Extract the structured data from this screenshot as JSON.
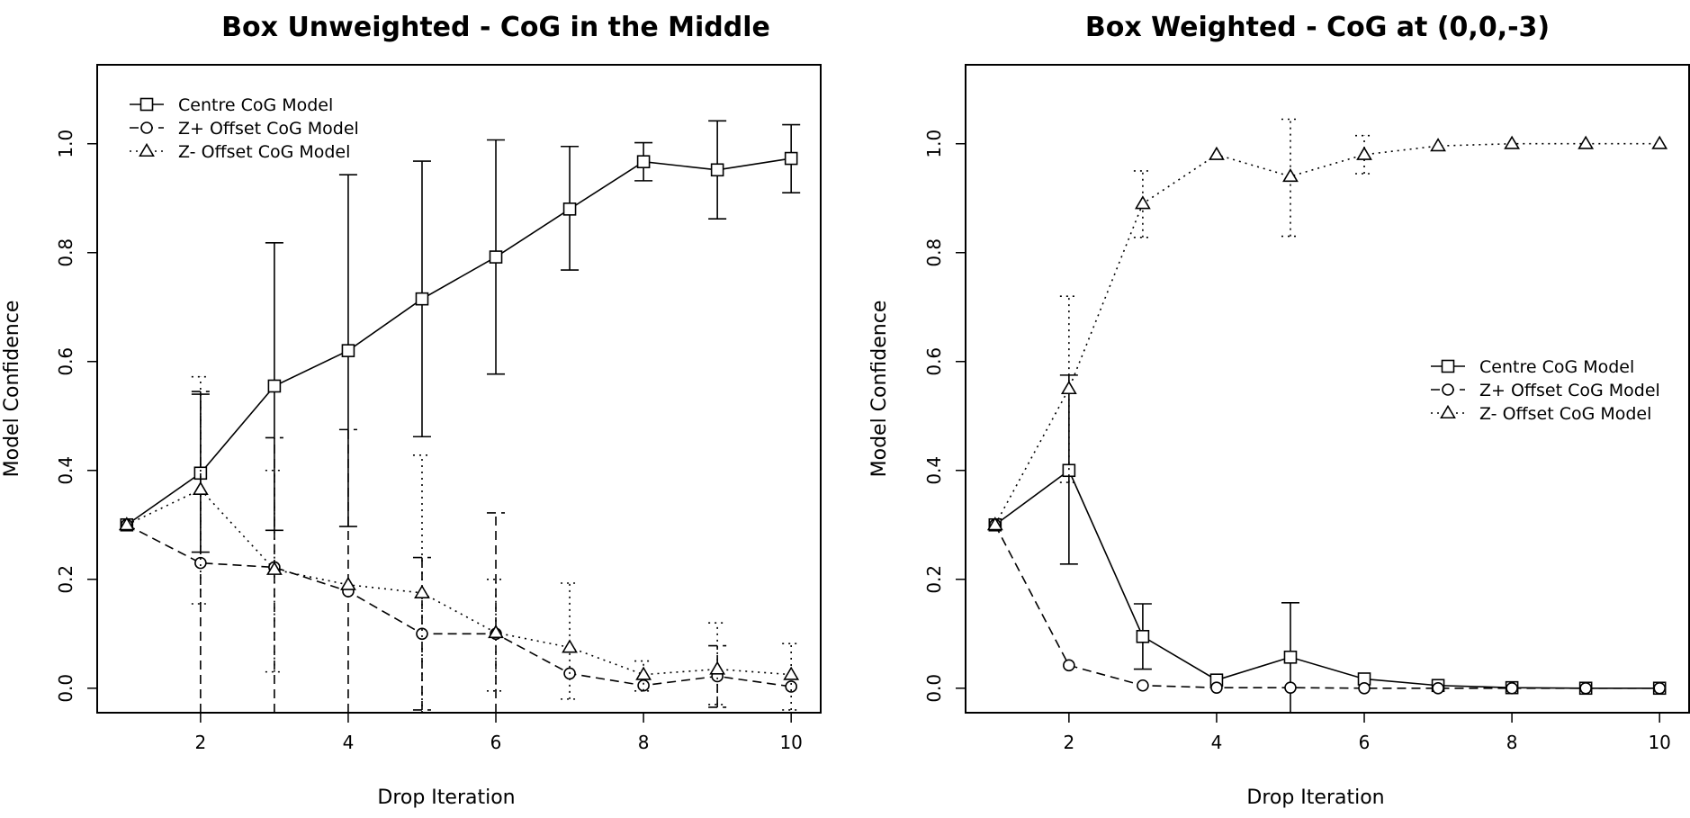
{
  "chart_data": [
    {
      "type": "line",
      "title": "Box Unweighted - CoG in the Middle",
      "xlabel": "Drop Iteration",
      "ylabel": "Model Confidence",
      "xlim": [
        0.6,
        10.4
      ],
      "ylim": [
        -0.045,
        1.145
      ],
      "xticks": [
        "2",
        "4",
        "6",
        "8",
        "10"
      ],
      "yticks": [
        "0.0",
        "0.2",
        "0.4",
        "0.6",
        "0.8",
        "1.0"
      ],
      "grid": false,
      "legend_position": "top-left",
      "x": [
        1,
        2,
        3,
        4,
        5,
        6,
        7,
        8,
        9,
        10
      ],
      "series": [
        {
          "name": "Centre CoG Model",
          "marker": "square",
          "line": "solid",
          "values": [
            0.3,
            0.395,
            0.555,
            0.62,
            0.715,
            0.792,
            0.88,
            0.967,
            0.952,
            0.973
          ],
          "error_low": [
            null,
            0.25,
            0.29,
            0.297,
            0.462,
            0.577,
            0.768,
            0.932,
            0.862,
            0.91
          ],
          "error_high": [
            null,
            0.54,
            0.818,
            0.943,
            0.968,
            1.007,
            0.995,
            1.002,
            1.042,
            1.035
          ]
        },
        {
          "name": "Z+ Offset CoG Model",
          "marker": "circle",
          "line": "dashed",
          "values": [
            0.3,
            0.23,
            0.222,
            0.178,
            0.1,
            0.1,
            0.027,
            0.005,
            0.022,
            0.003
          ],
          "error_low": [
            null,
            -0.045,
            -0.045,
            -0.045,
            -0.04,
            -0.045,
            null,
            null,
            -0.035,
            null
          ],
          "error_high": [
            null,
            0.545,
            0.46,
            0.475,
            0.24,
            0.322,
            null,
            null,
            0.078,
            null
          ]
        },
        {
          "name": "Z-  Offset CoG Model",
          "marker": "triangle",
          "line": "dotted",
          "values": [
            0.3,
            0.365,
            0.218,
            0.19,
            0.175,
            0.102,
            0.075,
            0.025,
            0.035,
            0.025
          ],
          "error_low": [
            null,
            0.155,
            0.03,
            null,
            -0.045,
            -0.005,
            -0.02,
            -0.005,
            -0.03,
            -0.04
          ],
          "error_high": [
            null,
            0.572,
            0.4,
            0.48,
            0.428,
            0.2,
            0.193,
            0.05,
            0.12,
            0.082
          ]
        }
      ]
    },
    {
      "type": "line",
      "title": "Box Weighted - CoG at (0,0,-3)",
      "xlabel": "Drop Iteration",
      "ylabel": "Model Confidence",
      "xlim": [
        0.6,
        10.4
      ],
      "ylim": [
        -0.045,
        1.145
      ],
      "xticks": [
        "2",
        "4",
        "6",
        "8",
        "10"
      ],
      "yticks": [
        "0.0",
        "0.2",
        "0.4",
        "0.6",
        "0.8",
        "1.0"
      ],
      "grid": false,
      "legend_position": "right-middle",
      "x": [
        1,
        2,
        3,
        4,
        5,
        6,
        7,
        8,
        9,
        10
      ],
      "series": [
        {
          "name": "Centre CoG Model",
          "marker": "square",
          "line": "solid",
          "values": [
            0.3,
            0.4,
            0.095,
            0.015,
            0.057,
            0.017,
            0.005,
            0.001,
            0.0,
            0.0
          ],
          "error_low": [
            null,
            0.228,
            0.035,
            null,
            -0.045,
            null,
            null,
            null,
            null,
            null
          ],
          "error_high": [
            null,
            0.575,
            0.155,
            null,
            0.157,
            null,
            null,
            null,
            null,
            null
          ]
        },
        {
          "name": "Z+ Offset CoG Model",
          "marker": "circle",
          "line": "dashed",
          "values": [
            0.3,
            0.042,
            0.005,
            0.001,
            0.001,
            0.0,
            0.0,
            0.0,
            0.0,
            0.0
          ],
          "error_low": [
            null,
            null,
            null,
            null,
            null,
            null,
            null,
            null,
            null,
            null
          ],
          "error_high": [
            null,
            null,
            null,
            null,
            null,
            null,
            null,
            null,
            null,
            null
          ]
        },
        {
          "name": "Z-  Offset CoG Model",
          "marker": "triangle",
          "line": "dotted",
          "values": [
            0.3,
            0.55,
            0.89,
            0.98,
            0.94,
            0.98,
            0.996,
            1.0,
            1.0,
            1.0
          ],
          "error_low": [
            null,
            0.378,
            0.828,
            null,
            0.83,
            0.945,
            null,
            null,
            null,
            null
          ],
          "error_high": [
            null,
            0.72,
            0.95,
            null,
            1.045,
            1.015,
            null,
            null,
            null,
            null
          ]
        }
      ]
    }
  ]
}
